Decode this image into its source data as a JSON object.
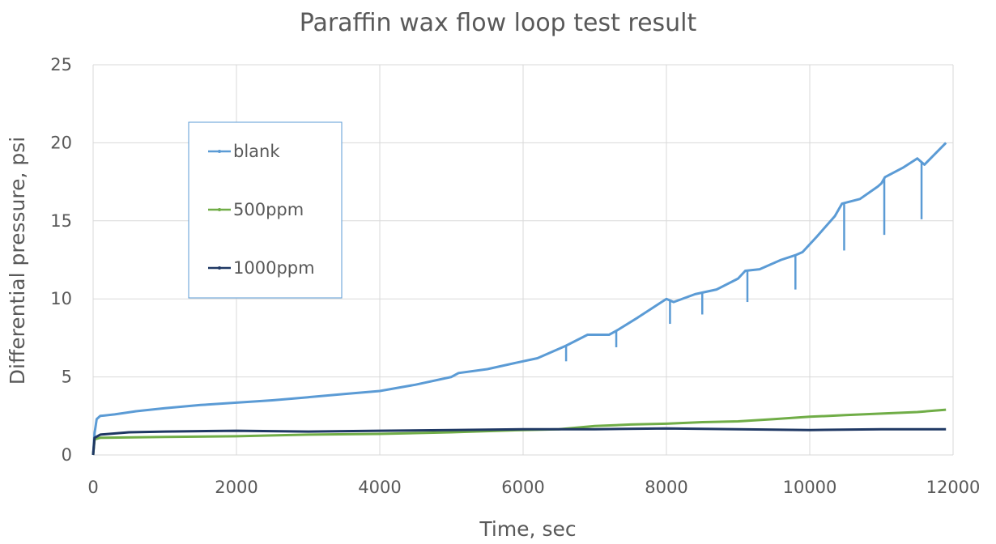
{
  "chart_data": {
    "type": "line",
    "title": "Paraffin wax flow loop test result",
    "xlabel": "Time, sec",
    "ylabel": "Differential pressure, psi",
    "xlim": [
      0,
      12000
    ],
    "ylim": [
      0,
      25
    ],
    "x_ticks": [
      0,
      2000,
      4000,
      6000,
      8000,
      10000,
      12000
    ],
    "y_ticks": [
      0,
      5,
      10,
      15,
      20,
      25
    ],
    "grid": true,
    "legend_position": "upper-left",
    "colors": {
      "blank": "#5b9bd5",
      "500ppm": "#70ad47",
      "1000ppm": "#1f3864",
      "grid": "#d9d9d9",
      "legend_border": "#5b9bd5"
    },
    "series": [
      {
        "name": "blank",
        "points": [
          [
            0,
            0
          ],
          [
            20,
            1.4
          ],
          [
            50,
            2.3
          ],
          [
            100,
            2.5
          ],
          [
            300,
            2.6
          ],
          [
            600,
            2.8
          ],
          [
            1000,
            3.0
          ],
          [
            1500,
            3.2
          ],
          [
            2000,
            3.35
          ],
          [
            2500,
            3.5
          ],
          [
            3000,
            3.7
          ],
          [
            3500,
            3.9
          ],
          [
            4000,
            4.1
          ],
          [
            4500,
            4.5
          ],
          [
            5000,
            5.0
          ],
          [
            5100,
            5.25
          ],
          [
            5500,
            5.5
          ],
          [
            5900,
            5.9
          ],
          [
            6200,
            6.2
          ],
          [
            6500,
            6.8
          ],
          [
            6600,
            7.0
          ],
          [
            6900,
            7.7
          ],
          [
            7200,
            7.7
          ],
          [
            7300,
            7.95
          ],
          [
            7600,
            8.8
          ],
          [
            7900,
            9.7
          ],
          [
            8000,
            10.0
          ],
          [
            8100,
            9.8
          ],
          [
            8400,
            10.3
          ],
          [
            8700,
            10.6
          ],
          [
            9000,
            11.3
          ],
          [
            9100,
            11.8
          ],
          [
            9300,
            11.9
          ],
          [
            9600,
            12.5
          ],
          [
            9800,
            12.8
          ],
          [
            9900,
            13.0
          ],
          [
            10100,
            14.0
          ],
          [
            10350,
            15.3
          ],
          [
            10450,
            16.1
          ],
          [
            10700,
            16.4
          ],
          [
            10950,
            17.2
          ],
          [
            11000,
            17.4
          ],
          [
            11050,
            17.8
          ],
          [
            11300,
            18.4
          ],
          [
            11500,
            19.0
          ],
          [
            11600,
            18.6
          ],
          [
            11900,
            20.0
          ]
        ],
        "dips": [
          [
            6600,
            6.0
          ],
          [
            7300,
            6.9
          ],
          [
            8050,
            8.4
          ],
          [
            8500,
            9.0
          ],
          [
            9130,
            9.8
          ],
          [
            9800,
            10.6
          ],
          [
            10480,
            13.1
          ],
          [
            11040,
            14.1
          ],
          [
            11560,
            15.1
          ]
        ]
      },
      {
        "name": "500ppm",
        "points": [
          [
            0,
            0
          ],
          [
            20,
            1.0
          ],
          [
            100,
            1.1
          ],
          [
            1000,
            1.15
          ],
          [
            2000,
            1.2
          ],
          [
            3000,
            1.3
          ],
          [
            4000,
            1.35
          ],
          [
            5000,
            1.45
          ],
          [
            6000,
            1.6
          ],
          [
            6500,
            1.65
          ],
          [
            7000,
            1.85
          ],
          [
            7500,
            1.95
          ],
          [
            8000,
            2.0
          ],
          [
            8500,
            2.1
          ],
          [
            9000,
            2.15
          ],
          [
            9500,
            2.3
          ],
          [
            10000,
            2.45
          ],
          [
            10500,
            2.55
          ],
          [
            11000,
            2.65
          ],
          [
            11500,
            2.75
          ],
          [
            11900,
            2.9
          ]
        ],
        "dips": []
      },
      {
        "name": "1000ppm",
        "points": [
          [
            0,
            0
          ],
          [
            20,
            1.1
          ],
          [
            100,
            1.3
          ],
          [
            500,
            1.45
          ],
          [
            1000,
            1.5
          ],
          [
            2000,
            1.55
          ],
          [
            3000,
            1.5
          ],
          [
            4000,
            1.55
          ],
          [
            5000,
            1.6
          ],
          [
            6000,
            1.65
          ],
          [
            7000,
            1.65
          ],
          [
            8000,
            1.7
          ],
          [
            9000,
            1.65
          ],
          [
            10000,
            1.6
          ],
          [
            11000,
            1.65
          ],
          [
            11900,
            1.65
          ]
        ],
        "dips": []
      }
    ]
  }
}
